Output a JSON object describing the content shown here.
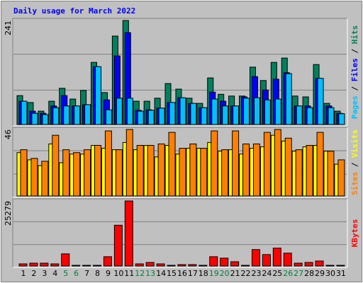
{
  "chart_data": {
    "type": "bar",
    "title": "Daily usage for March 2022",
    "categories": [
      "1",
      "2",
      "3",
      "4",
      "5",
      "6",
      "7",
      "8",
      "9",
      "10",
      "11",
      "12",
      "13",
      "14",
      "15",
      "16",
      "17",
      "18",
      "19",
      "20",
      "21",
      "22",
      "23",
      "24",
      "25",
      "26",
      "27",
      "28",
      "29",
      "30",
      "31"
    ],
    "category_color": "#000000",
    "weekend_indices": [
      4,
      5,
      11,
      12,
      18,
      19,
      25,
      26
    ],
    "weekend_color": "#008040",
    "legend_separator": " / ",
    "panels": [
      {
        "ylim": [
          0,
          241
        ],
        "yticks": [
          241
        ],
        "series": [
          {
            "name": "Hits",
            "color": "#00805c",
            "values": [
              67,
              51,
              31,
              54,
              84,
              59,
              79,
              144,
              74,
              205,
              241,
              54,
              54,
              61,
              95,
              82,
              61,
              49,
              108,
              70,
              66,
              66,
              133,
              102,
              144,
              154,
              66,
              64,
              139,
              49,
              31
            ]
          },
          {
            "name": "Files",
            "color": "#0000ff",
            "values": [
              54,
              31,
              26,
              43,
              67,
              43,
              46,
              134,
              57,
              159,
              213,
              33,
              34,
              38,
              51,
              62,
              49,
              39,
              75,
              54,
              43,
              64,
              111,
              80,
              105,
              120,
              43,
              43,
              107,
              43,
              26
            ]
          },
          {
            "name": "Pages",
            "color": "#00c0ff",
            "values": [
              54,
              26,
              23,
              39,
              43,
              43,
              46,
              134,
              34,
              61,
              61,
              31,
              33,
              38,
              51,
              62,
              49,
              39,
              59,
              43,
              43,
              61,
              62,
              57,
              59,
              118,
              43,
              39,
              107,
              39,
              25
            ]
          }
        ]
      },
      {
        "ylim": [
          0,
          46
        ],
        "yticks": [
          46
        ],
        "series": [
          {
            "name": "Visits",
            "color": "#ffff00",
            "values": [
              30,
              25,
              21,
              36,
              23,
              29,
              29,
              35,
              33,
              32,
              37,
              32,
              35,
              27,
              35,
              29,
              33,
              33,
              37,
              31,
              32,
              29,
              33,
              34,
              42,
              38,
              31,
              34,
              35,
              31,
              22
            ]
          },
          {
            "name": "Sites",
            "color": "#ff8000",
            "values": [
              32,
              26,
              24,
              42,
              32,
              30,
              32,
              35,
              45,
              32,
              46,
              35,
              35,
              36,
              44,
              33,
              36,
              33,
              45,
              32,
              45,
              36,
              36,
              44,
              46,
              40,
              32,
              35,
              44,
              31,
              25
            ]
          }
        ]
      },
      {
        "ylim": [
          0,
          25279
        ],
        "yticks": [
          25279
        ],
        "series": [
          {
            "name": "KBytes",
            "color": "#ff0000",
            "values": [
              834,
              1112,
              1112,
              834,
              4726,
              278,
              278,
              278,
              3614,
              15846,
              25279,
              834,
              1390,
              834,
              278,
              556,
              556,
              278,
              3614,
              3058,
              1668,
              278,
              6394,
              4448,
              6950,
              5004,
              1112,
              1390,
              1946,
              278,
              278
            ]
          }
        ]
      }
    ]
  }
}
